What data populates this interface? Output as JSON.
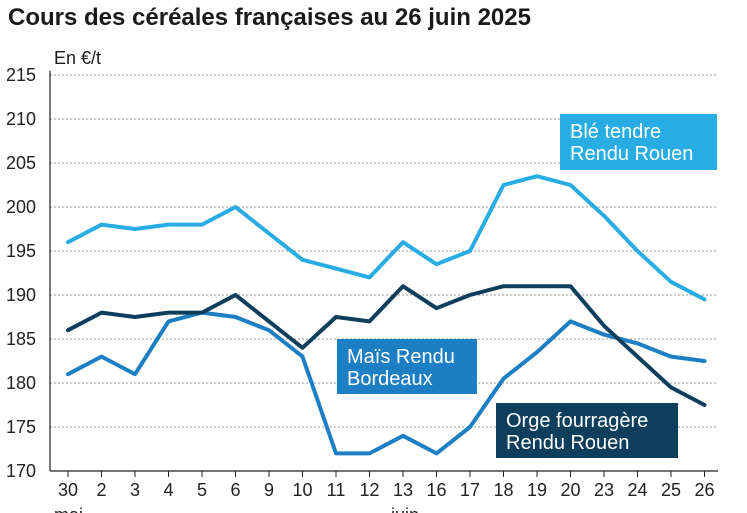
{
  "title": "Cours des céréales françaises au 26 juin 2025",
  "unit": "En €/t",
  "chart_data": {
    "type": "line",
    "categories": [
      "30",
      "2",
      "3",
      "4",
      "5",
      "6",
      "9",
      "10",
      "11",
      "12",
      "13",
      "16",
      "17",
      "18",
      "19",
      "20",
      "23",
      "24",
      "25",
      "26"
    ],
    "month_labels": [
      {
        "index": 0,
        "label": "mai"
      },
      {
        "index": 10,
        "label": "juin"
      }
    ],
    "ylim": [
      170,
      215
    ],
    "yticks": [
      170,
      175,
      180,
      185,
      190,
      195,
      200,
      205,
      210,
      215
    ],
    "grid": true,
    "series": [
      {
        "name": "Blé tendre Rendu Rouen",
        "label_lines": [
          "Blé tendre",
          "Rendu Rouen"
        ],
        "color": "#27ade3",
        "values": [
          196,
          198,
          197.5,
          198,
          198,
          200,
          197,
          194,
          193,
          192,
          196,
          193.5,
          195,
          202.5,
          203.5,
          202.5,
          199,
          195,
          191.5,
          189.5
        ]
      },
      {
        "name": "Maïs Rendu Bordeaux",
        "label_lines": [
          "Maïs Rendu",
          "Bordeaux"
        ],
        "color": "#1c7ec3",
        "values": [
          181,
          183,
          181,
          187,
          188,
          187.5,
          186,
          183,
          172,
          172,
          174,
          172,
          175,
          180.5,
          183.5,
          187,
          185.5,
          184.5,
          183,
          182.5
        ]
      },
      {
        "name": "Orge fourragère Rendu Rouen",
        "label_lines": [
          "Orge fourragère",
          "Rendu Rouen"
        ],
        "color": "#0d3f5c",
        "values": [
          186,
          188,
          187.5,
          188,
          188,
          190,
          187,
          184,
          187.5,
          187,
          191,
          188.5,
          190,
          191,
          191,
          191,
          186.5,
          183,
          179.5,
          177.5
        ]
      }
    ]
  }
}
